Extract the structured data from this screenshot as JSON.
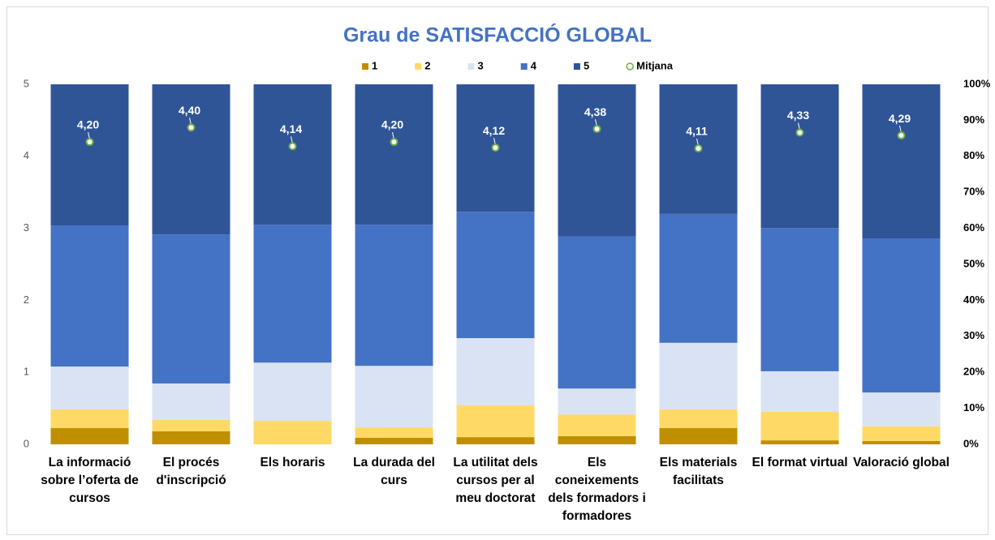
{
  "chart_data": {
    "type": "bar",
    "stacked": true,
    "title": "Grau de SATISFACCIÓ GLOBAL",
    "categories": [
      "La informació sobre l’oferta de cursos",
      "El procés d'inscripció",
      "Els horaris",
      "La durada del curs",
      "La utilitat dels cursos per al meu doctorat",
      "Els coneixements dels formadors i formadores",
      "Els materials facilitats",
      "El format virtual",
      "Valoració global"
    ],
    "series": [
      {
        "name": "1",
        "color": "#bf8f00",
        "axis": "y2",
        "values": [
          4.5,
          3.6,
          0,
          1.8,
          2.0,
          2.3,
          4.5,
          1.1,
          0.9
        ]
      },
      {
        "name": "2",
        "color": "#ffd966",
        "axis": "y2",
        "values": [
          5.2,
          3.2,
          6.5,
          2.9,
          8.8,
          6.0,
          5.2,
          7.9,
          4.1
        ]
      },
      {
        "name": "3",
        "color": "#dae3f3",
        "axis": "y2",
        "values": [
          11.9,
          10.1,
          16.2,
          17.1,
          18.7,
          7.2,
          18.5,
          11.3,
          9.4
        ]
      },
      {
        "name": "4",
        "color": "#4472c4",
        "axis": "y2",
        "values": [
          39.2,
          41.4,
          38.3,
          39.2,
          35.1,
          42.2,
          35.8,
          39.8,
          42.8
        ]
      },
      {
        "name": "5",
        "color": "#2f5597",
        "axis": "y2",
        "values": [
          39.2,
          41.7,
          39.0,
          39.0,
          35.4,
          42.3,
          36.0,
          39.9,
          42.8
        ]
      },
      {
        "name": "Mitjana",
        "color": "#70ad47",
        "type": "scatter",
        "values": [
          4.2,
          4.4,
          4.14,
          4.2,
          4.12,
          4.38,
          4.11,
          4.33,
          4.29
        ],
        "value_labels": [
          "4,20",
          "4,40",
          "4,14",
          "4,20",
          "4,12",
          "4,38",
          "4,11",
          "4,33",
          "4,29"
        ]
      }
    ],
    "ylim": [
      0,
      5
    ],
    "yticks": [
      0,
      1,
      2,
      3,
      4,
      5
    ],
    "y2lim": [
      0,
      100
    ],
    "y2ticks": [
      {
        "value": 0,
        "label": "0%"
      },
      {
        "value": 10,
        "label": "10%"
      },
      {
        "value": 20,
        "label": "20%"
      },
      {
        "value": 30,
        "label": "30%"
      },
      {
        "value": 40,
        "label": "40%"
      },
      {
        "value": 50,
        "label": "50%"
      },
      {
        "value": 60,
        "label": "60%"
      },
      {
        "value": 70,
        "label": "70%"
      },
      {
        "value": 80,
        "label": "80%"
      },
      {
        "value": 90,
        "label": "90%"
      },
      {
        "value": 100,
        "label": "100%"
      }
    ],
    "legend": "top"
  }
}
